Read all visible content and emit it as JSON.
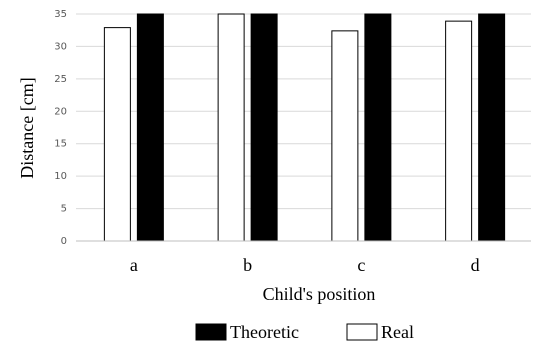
{
  "chart_data": {
    "type": "bar",
    "xlabel": "Child's position",
    "ylabel": "Distance [cm]",
    "categories": [
      "a",
      "b",
      "c",
      "d"
    ],
    "ylim": [
      0,
      35
    ],
    "yticks": [
      0,
      5,
      10,
      15,
      20,
      25,
      30,
      35
    ],
    "grid": true,
    "legend_position": "bottom",
    "series": [
      {
        "name": "Real",
        "values": [
          32.9,
          35.0,
          32.4,
          33.9
        ],
        "color": "#ffffff",
        "stroke": "#000000"
      },
      {
        "name": "Theoretic",
        "values": [
          35,
          35,
          35,
          35
        ],
        "color": "#000000",
        "stroke": "#000000"
      }
    ],
    "legend_order": [
      "Theoretic",
      "Real"
    ]
  }
}
